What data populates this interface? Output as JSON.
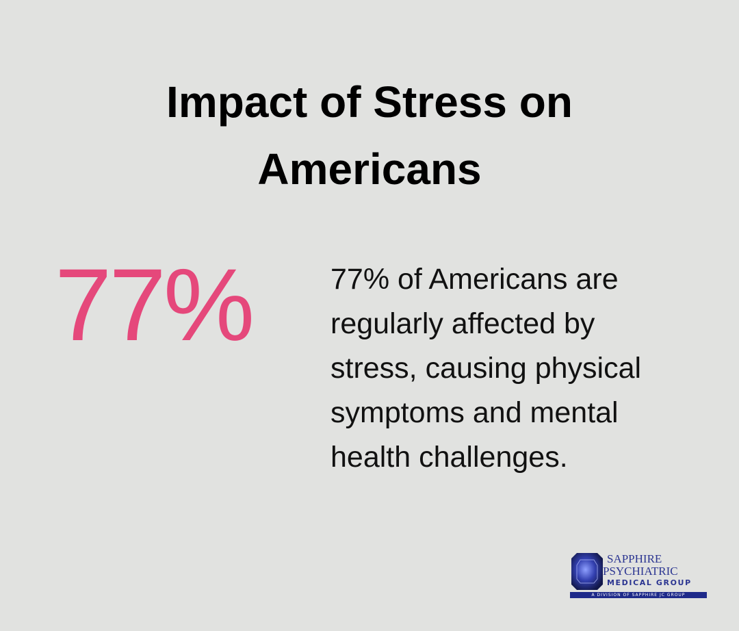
{
  "header": {
    "title": "Impact of Stress on Americans"
  },
  "stat": {
    "value_label": "77%"
  },
  "description": {
    "lines": [
      "77% of Americans are",
      "regularly affected by",
      "stress, causing physical",
      "symptoms and mental",
      "health challenges."
    ]
  },
  "logo": {
    "line1": "SAPPHIRE",
    "line2": "PSYCHIATRIC",
    "line3": "MEDICAL GROUP",
    "tagline": "A DIVISION OF SAPPHIRE JC GROUP"
  }
}
